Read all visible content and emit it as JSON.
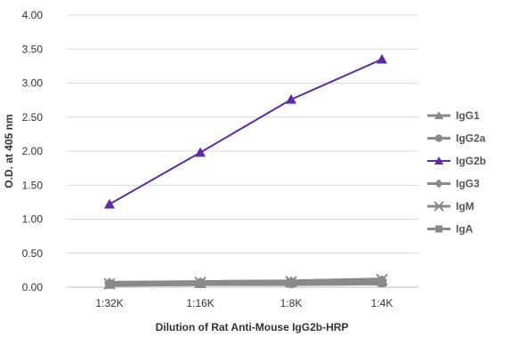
{
  "chart_data": {
    "type": "line",
    "categories": [
      "1:32K",
      "1:16K",
      "1:8K",
      "1:4K"
    ],
    "xlabel": "Dilution of Rat Anti-Mouse IgG2b-HRP",
    "ylabel": "O.D. at 405 nm",
    "ylim": [
      0,
      4
    ],
    "yticks": [
      "0.00",
      "0.50",
      "1.00",
      "1.50",
      "2.00",
      "2.50",
      "3.00",
      "3.50",
      "4.00"
    ],
    "grid": "horizontal",
    "legend_position": "right",
    "series": [
      {
        "name": "IgG1",
        "values": [
          0.05,
          0.06,
          0.07,
          0.08
        ],
        "color": "#8a8a8a",
        "marker": "triangle"
      },
      {
        "name": "IgG2a",
        "values": [
          0.04,
          0.05,
          0.05,
          0.06
        ],
        "color": "#8a8a8a",
        "marker": "circle"
      },
      {
        "name": "IgG2b",
        "values": [
          1.22,
          1.98,
          2.76,
          3.35
        ],
        "color": "#5b2ca6",
        "marker": "triangle"
      },
      {
        "name": "IgG3",
        "values": [
          0.06,
          0.07,
          0.08,
          0.1
        ],
        "color": "#8a8a8a",
        "marker": "diamond"
      },
      {
        "name": "IgM",
        "values": [
          0.05,
          0.07,
          0.08,
          0.11
        ],
        "color": "#8a8a8a",
        "marker": "cross"
      },
      {
        "name": "IgA",
        "values": [
          0.04,
          0.05,
          0.06,
          0.07
        ],
        "color": "#8a8a8a",
        "marker": "square"
      }
    ]
  }
}
